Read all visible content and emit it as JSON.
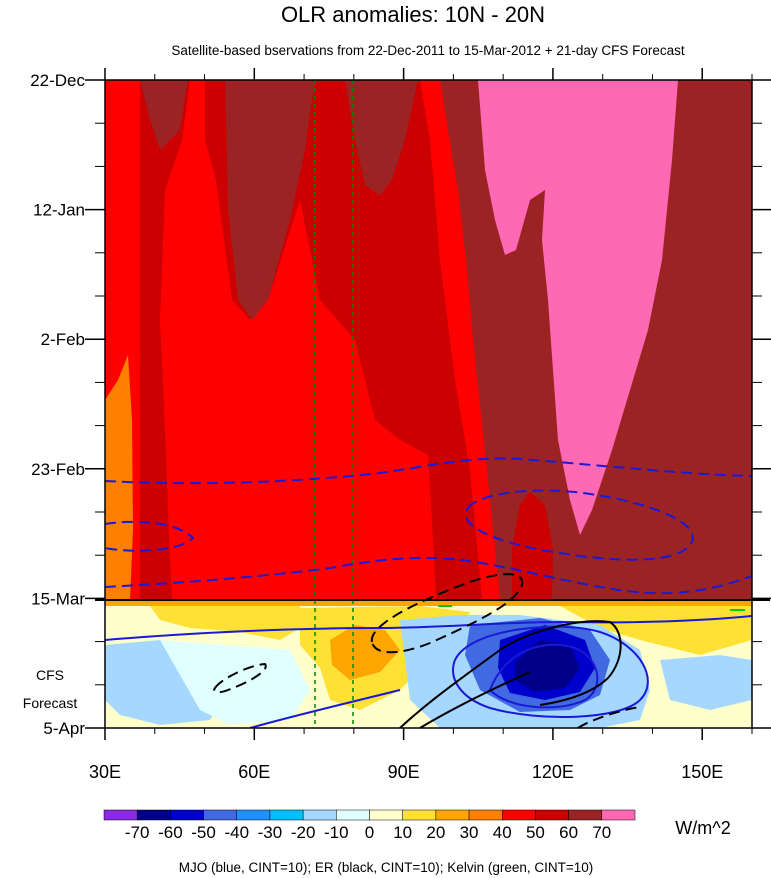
{
  "chart_data": {
    "type": "heatmap",
    "title": "OLR anomalies: 10N - 20N",
    "subtitle": "Satellite-based bservations from 22-Dec-2011 to 15-Mar-2012 + 21-day CFS Forecast",
    "x_axis": {
      "ticks": [
        "30E",
        "60E",
        "90E",
        "120E",
        "150E"
      ],
      "tick_values": [
        30,
        60,
        90,
        120,
        150
      ],
      "range": [
        30,
        160
      ]
    },
    "y_axis": {
      "ticks": [
        "22-Dec",
        "12-Jan",
        "2-Feb",
        "23-Feb",
        "15-Mar",
        "5-Apr"
      ],
      "tick_days": [
        0,
        21,
        42,
        63,
        84,
        105
      ],
      "range_days": [
        0,
        105
      ],
      "forecast_label_line1": "CFS",
      "forecast_label_line2": "Forecast"
    },
    "observation_end": "15-Mar",
    "forecast_start_day": 84,
    "colorbar": {
      "labels": [
        "-70",
        "-60",
        "-50",
        "-40",
        "-30",
        "-20",
        "-10",
        "0",
        "10",
        "20",
        "30",
        "40",
        "50",
        "60",
        "70"
      ],
      "colors": [
        "#8a2be2",
        "#00008b",
        "#0000cd",
        "#4169e1",
        "#1e90ff",
        "#00bfff",
        "#a6d8ff",
        "#e0ffff",
        "#ffffcc",
        "#ffe135",
        "#ffa500",
        "#ff7f00",
        "#ff0000",
        "#cc0000",
        "#9b2323",
        "#ff69b4"
      ],
      "units": "W/m^2"
    },
    "vertical_lines": [
      72,
      80
    ],
    "footnote": "MJO (blue, CINT=10); ER (black, CINT=10); Kelvin (green, CINT=10)"
  }
}
